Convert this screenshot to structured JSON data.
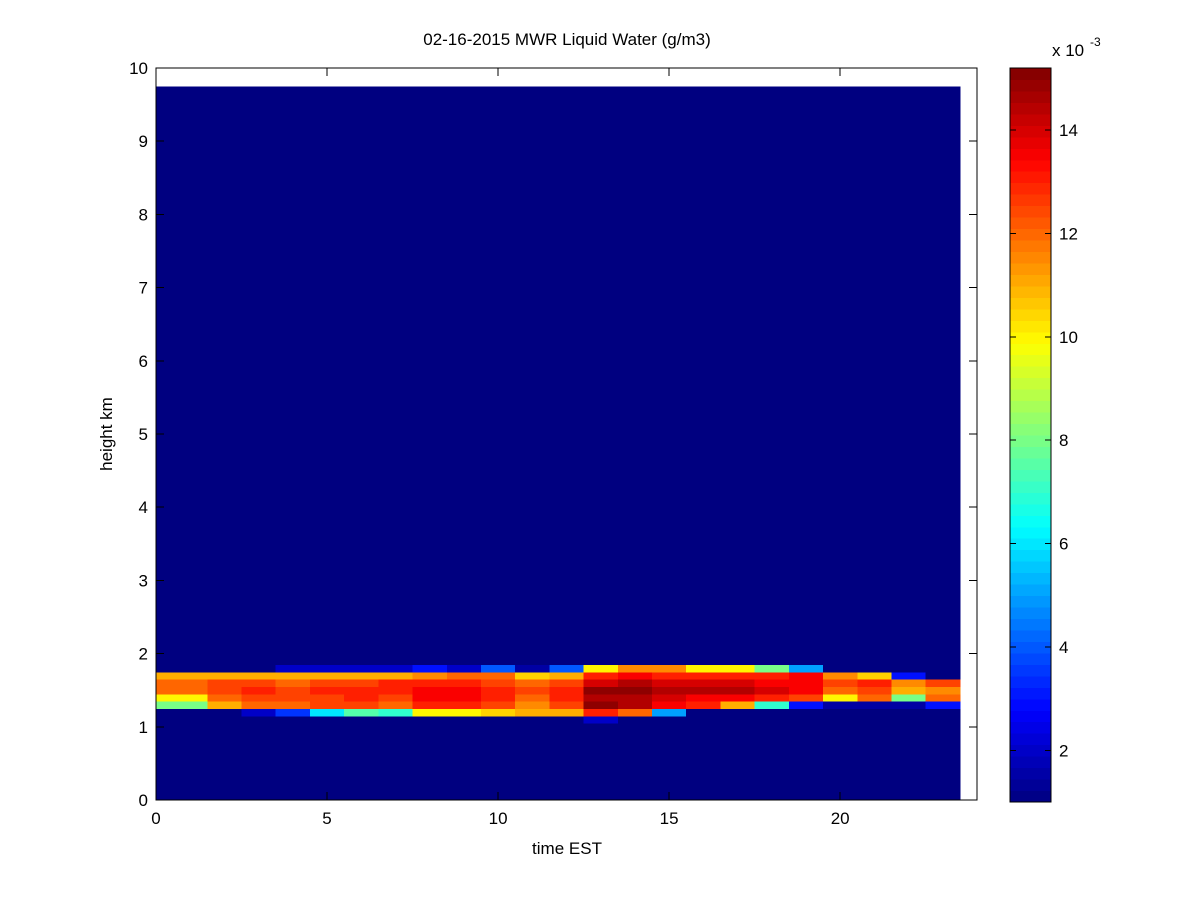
{
  "chart_data": {
    "type": "heatmap",
    "title": "02-16-2015 MWR Liquid Water (g/m3)",
    "xlabel": "time EST",
    "ylabel": "height km",
    "colormap": "jet",
    "xlim": [
      0,
      24
    ],
    "ylim": [
      0,
      10
    ],
    "xticks": [
      0,
      5,
      10,
      15,
      20
    ],
    "yticks": [
      0,
      1,
      2,
      3,
      4,
      5,
      6,
      7,
      8,
      9,
      10
    ],
    "x_edges": [
      0,
      1.5,
      2.5,
      3.5,
      4.5,
      5.5,
      6.5,
      7.5,
      8.5,
      9.5,
      10.5,
      11.5,
      12.5,
      13.5,
      14.5,
      15.5,
      16.5,
      17.5,
      18.5,
      19.5,
      20.5,
      21.5,
      22.5,
      23.5
    ],
    "y_edges": [
      0,
      1.05,
      1.15,
      1.25,
      1.35,
      1.45,
      1.55,
      1.65,
      1.75,
      1.85,
      9.75
    ],
    "z": [
      [
        1,
        1,
        1,
        1,
        1,
        1,
        1,
        1,
        1,
        1,
        1,
        1,
        1,
        1,
        1,
        1,
        1,
        1,
        1,
        1,
        1,
        1,
        1
      ],
      [
        1,
        1,
        1,
        1,
        1,
        1,
        1,
        1,
        1,
        1,
        1,
        1,
        2,
        1,
        1,
        1,
        1,
        1,
        1,
        1,
        1,
        1,
        1
      ],
      [
        1,
        1,
        2,
        3.5,
        6,
        7.5,
        7,
        10,
        10,
        10.5,
        11,
        11,
        13,
        12,
        5,
        1,
        1,
        1,
        1,
        1,
        1,
        1,
        1
      ],
      [
        8,
        11,
        12,
        12,
        12.5,
        12.5,
        12,
        13,
        13,
        12.5,
        11.5,
        12.5,
        15,
        14.5,
        13.5,
        13,
        11,
        7,
        3,
        1.5,
        1.5,
        1.5,
        3
      ],
      [
        10,
        12,
        12.5,
        12.5,
        12.5,
        13,
        12.5,
        13.5,
        13.5,
        13,
        12,
        13,
        14.5,
        14.5,
        14,
        13.5,
        13.5,
        13,
        12.5,
        10,
        12,
        8,
        12
      ],
      [
        12,
        12.5,
        13,
        12.5,
        13,
        13,
        13,
        13.5,
        13.5,
        13,
        12.5,
        13,
        15,
        15,
        14.5,
        14.5,
        14.5,
        14,
        13.5,
        12,
        12.5,
        11,
        11.5
      ],
      [
        12,
        12.5,
        12.5,
        12,
        12.5,
        12.5,
        13,
        13,
        13,
        12.5,
        12,
        12.5,
        14,
        14.5,
        14,
        14,
        14,
        13.5,
        13.5,
        12.5,
        13,
        11.5,
        12.5
      ],
      [
        11,
        11,
        11,
        11,
        11,
        11,
        11,
        11.5,
        12,
        12,
        10.5,
        11,
        13,
        13.5,
        13,
        13,
        13,
        13,
        13.5,
        11.5,
        10.5,
        3,
        1
      ],
      [
        1,
        1,
        1,
        2,
        2,
        2,
        2,
        3,
        2,
        4,
        1.5,
        4,
        10,
        11.5,
        11.5,
        10,
        10,
        8,
        5,
        1,
        1,
        1,
        1
      ],
      [
        1,
        1,
        1,
        1,
        1,
        1,
        1,
        1,
        1,
        1,
        1,
        1,
        1,
        1,
        1,
        1,
        1,
        1,
        1,
        1,
        1,
        1,
        1
      ]
    ],
    "colorbar": {
      "clim": [
        1,
        15.2
      ],
      "ticks": [
        2,
        4,
        6,
        8,
        10,
        12,
        14
      ],
      "multiplier": "x 10",
      "exponent": "-3"
    }
  }
}
